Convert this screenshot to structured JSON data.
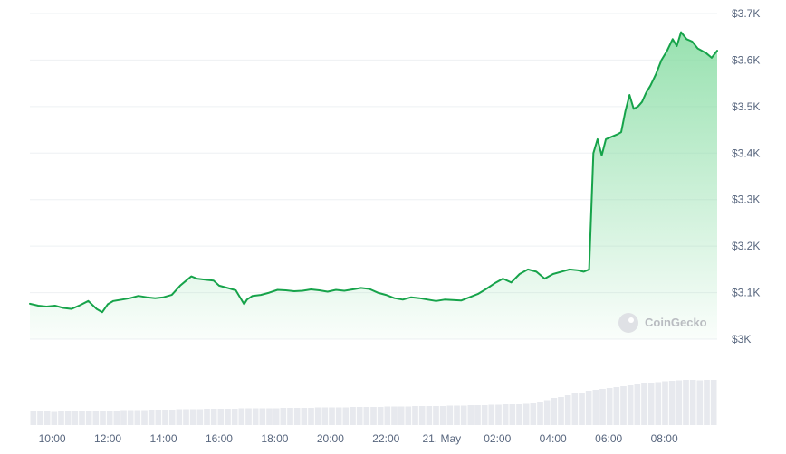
{
  "colors": {
    "line": "#16a34a",
    "area_top": "#86dca2",
    "grid": "#eef0f3",
    "volume": "#e7e9ee",
    "text": "#58667e"
  },
  "watermark": {
    "text": "CoinGecko",
    "icon": "coingecko-logo-icon"
  },
  "chart_data": {
    "type": "area",
    "title": "",
    "xlabel": "",
    "ylabel": "",
    "legend": "none",
    "grid": true,
    "ylim": [
      3000,
      3700
    ],
    "y_ticks": [
      "$3.7K",
      "$3.6K",
      "$3.5K",
      "$3.4K",
      "$3.3K",
      "$3.2K",
      "$3.1K",
      "$3K"
    ],
    "y_tick_values": [
      3700,
      3600,
      3500,
      3400,
      3300,
      3200,
      3100,
      3000
    ],
    "x_ticks": [
      "10:00",
      "12:00",
      "14:00",
      "16:00",
      "18:00",
      "20:00",
      "22:00",
      "21. May",
      "02:00",
      "04:00",
      "06:00",
      "08:00"
    ],
    "x_tick_hours": [
      10,
      12,
      14,
      16,
      18,
      20,
      22,
      24,
      26,
      28,
      30,
      32
    ],
    "xlim_hours": [
      9.2,
      33.9
    ],
    "x_unit_note": "hours since 00:00 on the day before 21 May; 24 = 21. May 00:00",
    "series": [
      {
        "x": [
          9.2,
          9.5,
          9.8,
          10.1,
          10.4,
          10.7,
          11.0,
          11.3,
          11.6,
          11.8,
          12.0,
          12.2,
          12.5,
          12.8,
          13.1,
          13.4,
          13.7,
          14.0,
          14.3,
          14.6,
          14.8,
          15.0,
          15.2,
          15.5,
          15.8,
          16.0,
          16.3,
          16.6,
          16.9,
          17.0,
          17.2,
          17.5,
          17.8,
          18.1,
          18.4,
          18.7,
          19.0,
          19.3,
          19.6,
          19.9,
          20.2,
          20.5,
          20.8,
          21.1,
          21.4,
          21.7,
          22.0,
          22.3,
          22.6,
          22.9,
          23.2,
          23.5,
          23.8,
          24.1,
          24.4,
          24.7,
          25.0,
          25.3,
          25.6,
          25.9,
          26.2,
          26.5,
          26.8,
          27.1,
          27.4,
          27.7,
          28.0,
          28.3,
          28.6,
          28.9,
          29.1,
          29.3,
          29.45,
          29.6,
          29.75,
          29.9,
          30.1,
          30.3,
          30.45,
          30.6,
          30.75,
          30.9,
          31.05,
          31.2,
          31.35,
          31.5,
          31.7,
          31.9,
          32.1,
          32.3,
          32.45,
          32.6,
          32.8,
          33.0,
          33.2,
          33.35,
          33.5,
          33.7,
          33.9
        ],
        "values": [
          3076,
          3072,
          3070,
          3072,
          3067,
          3065,
          3073,
          3082,
          3065,
          3058,
          3075,
          3082,
          3085,
          3088,
          3093,
          3090,
          3088,
          3090,
          3095,
          3115,
          3125,
          3135,
          3130,
          3128,
          3126,
          3115,
          3110,
          3105,
          3075,
          3085,
          3093,
          3095,
          3100,
          3106,
          3105,
          3103,
          3104,
          3107,
          3105,
          3102,
          3106,
          3104,
          3107,
          3110,
          3108,
          3100,
          3095,
          3088,
          3085,
          3090,
          3088,
          3085,
          3082,
          3085,
          3084,
          3083,
          3090,
          3097,
          3108,
          3120,
          3130,
          3122,
          3140,
          3150,
          3145,
          3130,
          3140,
          3145,
          3150,
          3148,
          3145,
          3150,
          3400,
          3430,
          3395,
          3430,
          3435,
          3440,
          3445,
          3490,
          3525,
          3495,
          3500,
          3510,
          3530,
          3545,
          3570,
          3600,
          3620,
          3645,
          3630,
          3660,
          3645,
          3640,
          3625,
          3620,
          3615,
          3605,
          3620
        ]
      }
    ],
    "volume_relative": [
      0.3,
      0.3,
      0.3,
      0.29,
      0.3,
      0.3,
      0.31,
      0.31,
      0.31,
      0.31,
      0.32,
      0.32,
      0.32,
      0.33,
      0.33,
      0.33,
      0.33,
      0.34,
      0.34,
      0.34,
      0.34,
      0.35,
      0.35,
      0.35,
      0.35,
      0.36,
      0.36,
      0.36,
      0.36,
      0.36,
      0.37,
      0.37,
      0.37,
      0.37,
      0.37,
      0.37,
      0.38,
      0.38,
      0.38,
      0.38,
      0.38,
      0.39,
      0.39,
      0.39,
      0.39,
      0.39,
      0.4,
      0.4,
      0.4,
      0.4,
      0.4,
      0.41,
      0.41,
      0.41,
      0.41,
      0.42,
      0.42,
      0.42,
      0.42,
      0.42,
      0.43,
      0.43,
      0.43,
      0.44,
      0.44,
      0.44,
      0.45,
      0.45,
      0.46,
      0.46,
      0.46,
      0.47,
      0.48,
      0.5,
      0.55,
      0.6,
      0.62,
      0.66,
      0.7,
      0.72,
      0.76,
      0.78,
      0.8,
      0.82,
      0.84,
      0.86,
      0.88,
      0.9,
      0.92,
      0.94,
      0.95,
      0.97,
      0.98,
      0.99,
      1.0,
      1.0,
      0.99,
      1.0,
      1.0
    ]
  }
}
